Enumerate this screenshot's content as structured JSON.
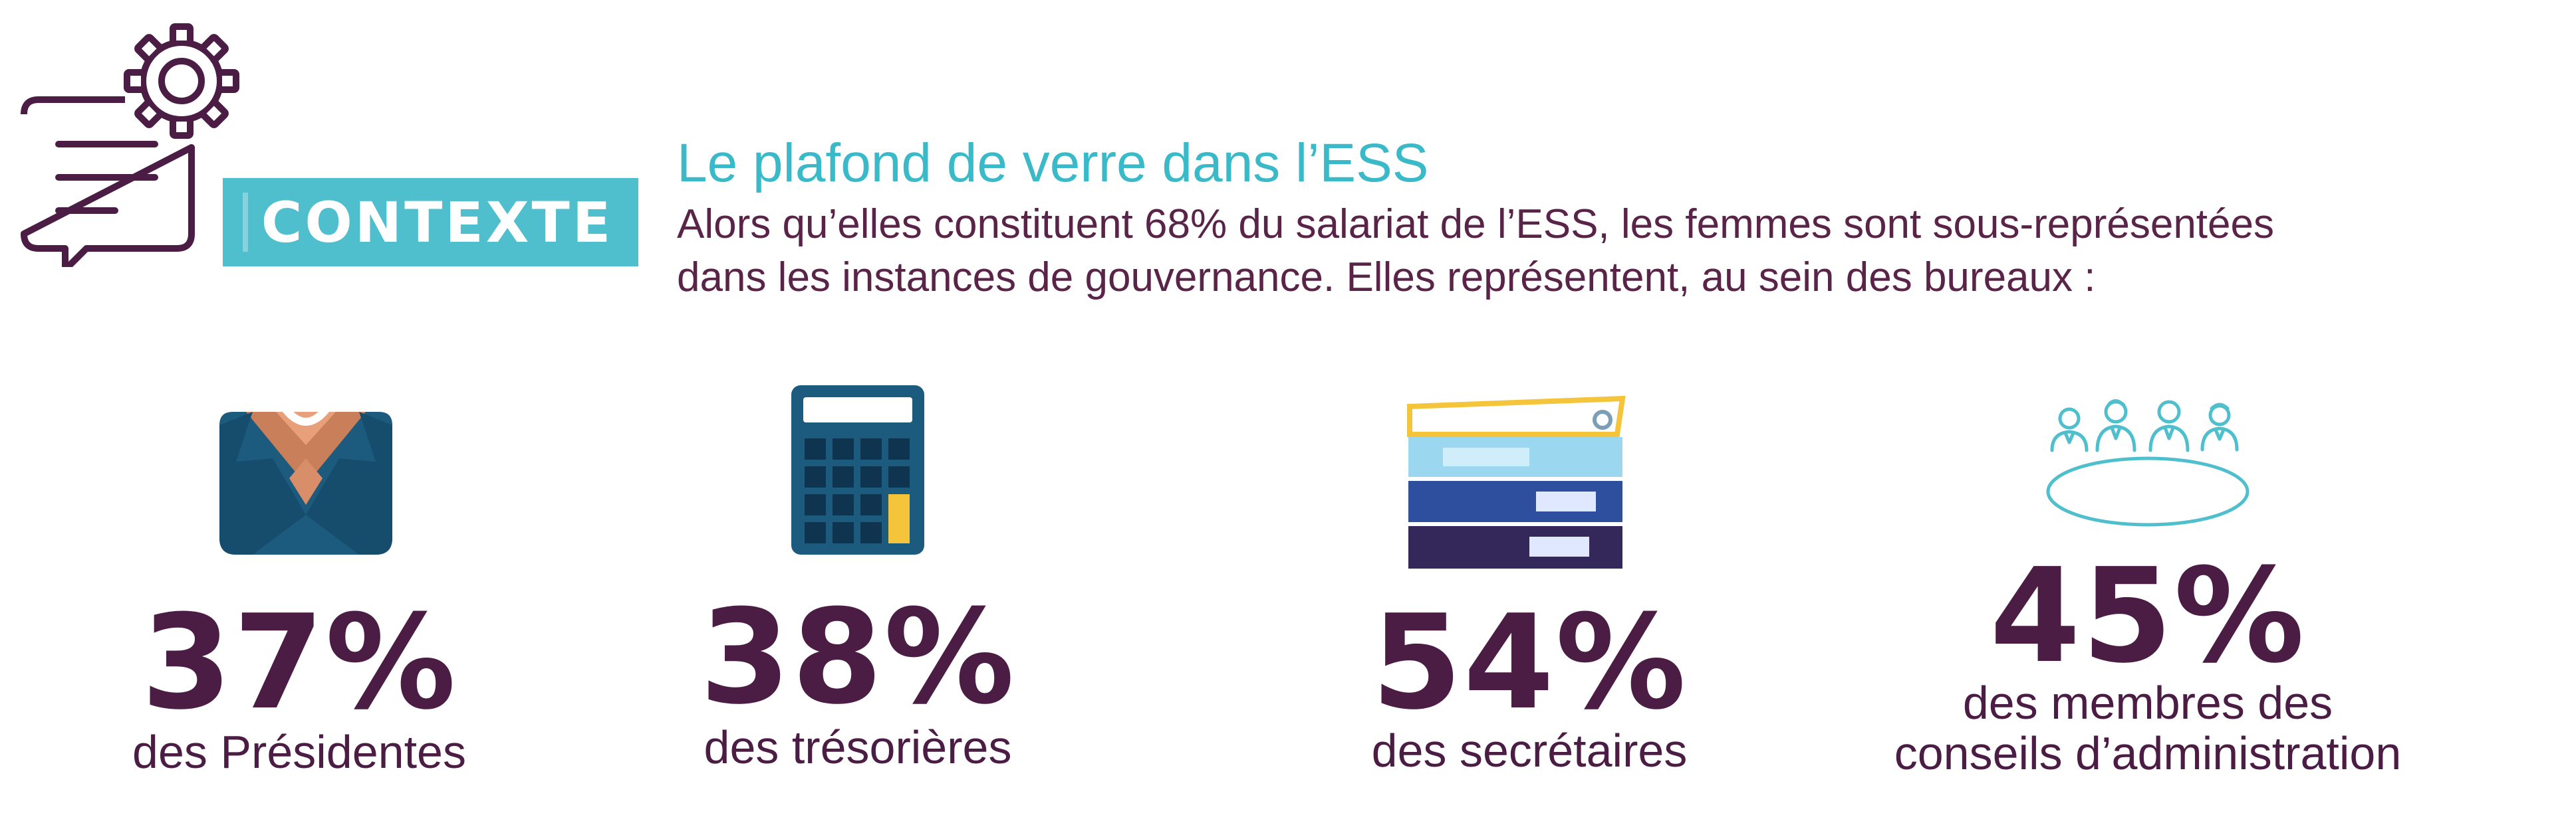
{
  "header": {
    "badge": "CONTEXTE",
    "title": "Le plafond de verre dans l’ESS",
    "intro_line1": "Alors qu’elles constituent 68% du salariat de l’ESS, les femmes sont sous-représentées",
    "intro_line2": "dans les instances de gouvernance. Elles représentent, au sein des bureaux :"
  },
  "stats": [
    {
      "value": "37%",
      "label_lines": [
        "des Présidentes"
      ],
      "icon": "suit-icon"
    },
    {
      "value": "38%",
      "label_lines": [
        "des trésorières"
      ],
      "icon": "calculator-icon"
    },
    {
      "value": "54%",
      "label_lines": [
        "des secrétaires"
      ],
      "icon": "binders-icon"
    },
    {
      "value": "45%",
      "label_lines": [
        "des membres des",
        "conseils d’administration"
      ],
      "icon": "board-meeting-icon"
    }
  ],
  "colors": {
    "accent_teal": "#3ab9c8",
    "badge_teal": "#4fbfcd",
    "text_purple": "#5a2348",
    "number_purple": "#4b1c44"
  }
}
